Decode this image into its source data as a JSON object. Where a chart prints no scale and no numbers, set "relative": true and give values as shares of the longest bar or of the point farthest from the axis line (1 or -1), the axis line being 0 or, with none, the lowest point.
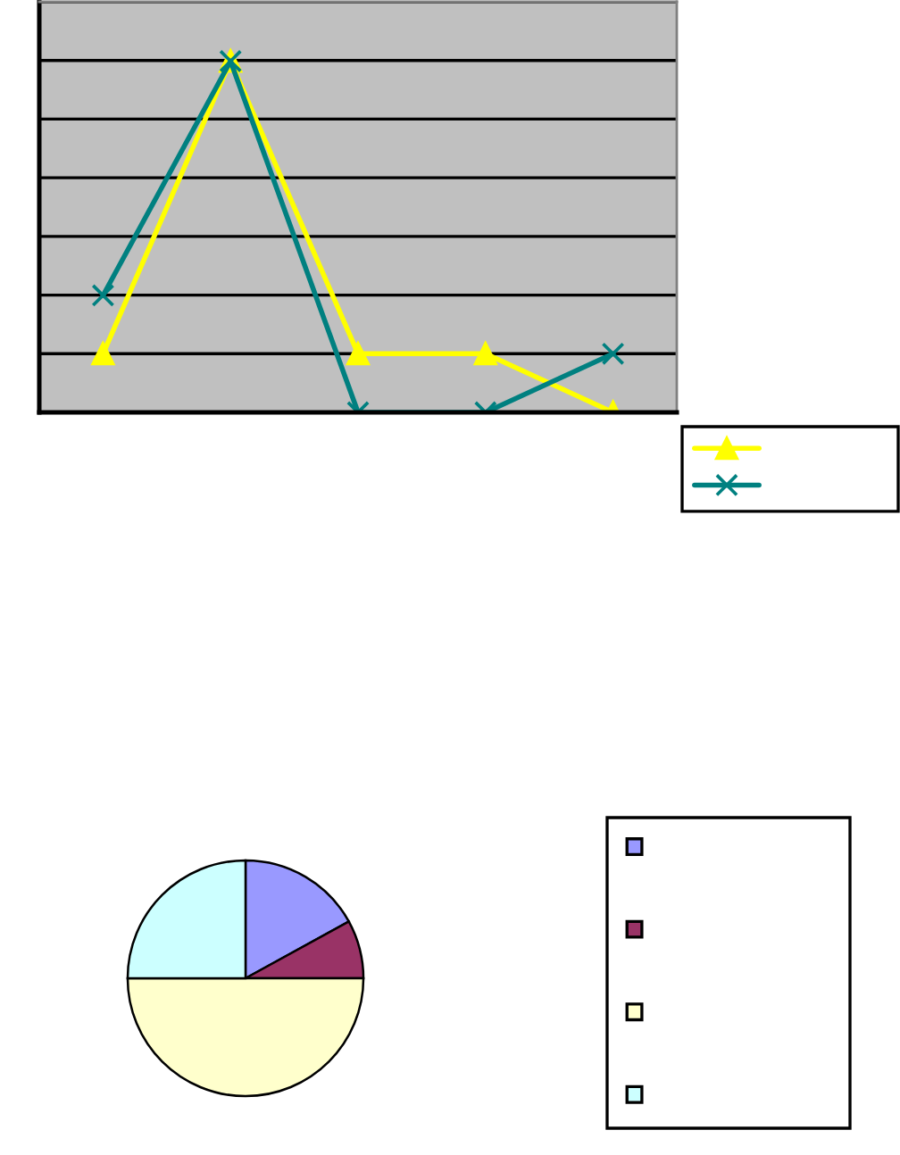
{
  "chart_data": [
    {
      "type": "line",
      "categories": [
        null,
        null,
        null,
        null,
        null
      ],
      "relative": true,
      "grid": "y",
      "series": [
        {
          "color": "#ffff00",
          "marker": "triangle",
          "values": [
            0.167,
            1,
            0.167,
            0.167,
            0
          ]
        },
        {
          "color": "#008080",
          "marker": "cross",
          "values": [
            0.333,
            1,
            0,
            0,
            0.167
          ]
        }
      ]
    },
    {
      "type": "pie",
      "categories": [
        null,
        null,
        null,
        null
      ],
      "values": [
        17,
        8,
        50,
        25
      ],
      "colors": [
        "#9999ff",
        "#993366",
        "#ffffcc",
        "#ccffff"
      ]
    }
  ]
}
